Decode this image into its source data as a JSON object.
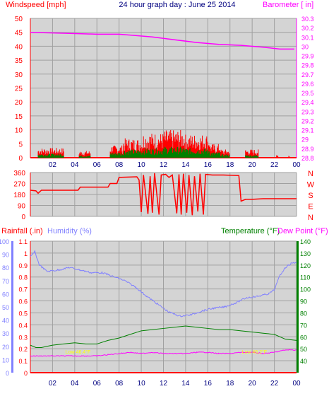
{
  "page": {
    "title": "24 hour graph day : June 25 2014",
    "background": "#ffffff",
    "plot_background": "#d4d4d4",
    "grid_color": "#a0a0a0"
  },
  "chart_data": [
    {
      "id": "wind-baro",
      "type": "line",
      "title": "24 hour graph day : June 25 2014",
      "ylabel_left": "Windspeed [mph]",
      "ylabel_right": "Barometer [ in]",
      "left_axis": {
        "range": [
          0,
          50
        ],
        "ticks": [
          "0",
          "5",
          "10",
          "15",
          "20",
          "25",
          "30",
          "35",
          "40",
          "45",
          "50"
        ],
        "color": "#ff0000"
      },
      "right_axis": {
        "range": [
          28.8,
          30.3
        ],
        "ticks": [
          "28.8",
          "28.9",
          "29",
          "29.1",
          "29.2",
          "29.3",
          "29.4",
          "29.5",
          "29.6",
          "29.7",
          "29.8",
          "29.9",
          "30",
          "30.1",
          "30.2",
          "30.3"
        ],
        "color": "#ff00ff"
      },
      "x_ticks": [
        "02",
        "04",
        "06",
        "08",
        "10",
        "12",
        "14",
        "16",
        "18",
        "20",
        "22",
        "00"
      ],
      "x_range_hours": [
        0,
        24
      ],
      "grid": true,
      "series": [
        {
          "axis": "right",
          "color": "#ff00ff",
          "points": [
            [
              0,
              30.15
            ],
            [
              3,
              30.14
            ],
            [
              6,
              30.13
            ],
            [
              8,
              30.13
            ],
            [
              9,
              30.12
            ],
            [
              11,
              30.1
            ],
            [
              13,
              30.07
            ],
            [
              15,
              30.04
            ],
            [
              17,
              30.02
            ],
            [
              19,
              30.01
            ],
            [
              21,
              29.99
            ],
            [
              22.5,
              29.97
            ],
            [
              23.8,
              29.97
            ]
          ]
        },
        {
          "axis": "left",
          "color": "#ff0000",
          "style": "gust",
          "segments": [
            [
              0.7,
              3.0,
              3.5
            ],
            [
              4.4,
              5.4,
              2.5
            ],
            [
              7.2,
              8.4,
              4.5
            ],
            [
              8.4,
              10.2,
              7.0
            ],
            [
              10.2,
              12.0,
              9.0
            ],
            [
              12.0,
              14.0,
              10.0
            ],
            [
              14.0,
              16.2,
              8.5
            ],
            [
              16.2,
              17.2,
              5.0
            ],
            [
              17.2,
              18.0,
              3.0
            ],
            [
              19.4,
              20.6,
              3.0
            ],
            [
              22.2,
              22.4,
              1.0
            ],
            [
              23.3,
              23.4,
              1.0
            ]
          ]
        },
        {
          "axis": "left",
          "color": "#008000",
          "style": "average",
          "segments": [
            [
              0.7,
              3.0,
              1.5
            ],
            [
              4.4,
              5.4,
              0.8
            ],
            [
              7.2,
              8.4,
              2.0
            ],
            [
              8.4,
              10.2,
              3.0
            ],
            [
              10.2,
              12.0,
              3.5
            ],
            [
              12.0,
              14.0,
              4.0
            ],
            [
              14.0,
              16.2,
              3.5
            ],
            [
              16.2,
              17.2,
              2.0
            ],
            [
              17.2,
              18.0,
              1.2
            ],
            [
              19.4,
              20.6,
              1.0
            ]
          ]
        }
      ]
    },
    {
      "id": "wind-direction",
      "type": "line",
      "left_axis": {
        "range": [
          0,
          360
        ],
        "ticks": [
          "0",
          "90",
          "180",
          "270",
          "360"
        ],
        "color": "#ff0000"
      },
      "right_labels": [
        "N",
        "W",
        "S",
        "E",
        "N"
      ],
      "right_color": "#ff0000",
      "x_ticks": [
        "02",
        "04",
        "06",
        "08",
        "10",
        "12",
        "14",
        "16",
        "18",
        "20",
        "22",
        "00"
      ],
      "x_range_hours": [
        0,
        24
      ],
      "grid": true,
      "series": [
        {
          "color": "#ff0000",
          "points": [
            [
              0,
              215
            ],
            [
              0.5,
              210
            ],
            [
              0.7,
              190
            ],
            [
              1,
              215
            ],
            [
              4.3,
              215
            ],
            [
              4.5,
              240
            ],
            [
              7,
              240
            ],
            [
              7.2,
              270
            ],
            [
              7.8,
              270
            ],
            [
              8,
              320
            ],
            [
              9.6,
              325
            ],
            [
              9.8,
              300
            ],
            [
              10,
              35
            ],
            [
              10.2,
              340
            ],
            [
              10.6,
              20
            ],
            [
              10.8,
              330
            ],
            [
              11,
              30
            ],
            [
              11.2,
              355
            ],
            [
              11.6,
              15
            ],
            [
              11.8,
              340
            ],
            [
              12.2,
              345
            ],
            [
              12.5,
              320
            ],
            [
              12.8,
              340
            ],
            [
              13.2,
              25
            ],
            [
              13.4,
              345
            ],
            [
              13.6,
              15
            ],
            [
              13.8,
              350
            ],
            [
              14.1,
              30
            ],
            [
              14.3,
              340
            ],
            [
              14.6,
              10
            ],
            [
              14.8,
              330
            ],
            [
              15.1,
              40
            ],
            [
              15.3,
              350
            ],
            [
              15.6,
              15
            ],
            [
              15.8,
              345
            ],
            [
              16.4,
              340
            ],
            [
              17.4,
              340
            ],
            [
              18.8,
              335
            ],
            [
              19,
              125
            ],
            [
              19.4,
              140
            ],
            [
              20,
              140
            ],
            [
              21,
              145
            ],
            [
              22,
              145
            ],
            [
              24,
              145
            ]
          ]
        }
      ]
    },
    {
      "id": "rain-humidity-temp",
      "type": "line",
      "ylabel_rain": "Rainfall (.in)",
      "ylabel_humidity": "Humidity (%)",
      "ylabel_temp": "Temperature (°F)",
      "ylabel_dew": "Dew Point (°F)",
      "humidity_axis": {
        "range": [
          0,
          100
        ],
        "ticks": [
          "0",
          "10",
          "20",
          "30",
          "40",
          "50",
          "60",
          "70",
          "80",
          "90",
          "100"
        ],
        "color": "#8080ff"
      },
      "rain_axis": {
        "range": [
          0,
          1.1
        ],
        "ticks": [
          "0",
          "0.1",
          "0.2",
          "0.3",
          "0.4",
          "0.5",
          "0.6",
          "0.7",
          "0.8",
          "0.9",
          "1",
          "1.1"
        ],
        "color": "#ff0000"
      },
      "temp_axis": {
        "range": [
          30,
          140
        ],
        "ticks": [
          "40",
          "50",
          "60",
          "70",
          "80",
          "90",
          "100",
          "110",
          "120",
          "130",
          "140"
        ],
        "color": "#008000"
      },
      "x_ticks": [
        "02",
        "04",
        "06",
        "08",
        "10",
        "12",
        "14",
        "16",
        "18",
        "20",
        "22",
        "00"
      ],
      "x_range_hours": [
        0,
        24
      ],
      "grid": true,
      "annotations": [
        {
          "text": "Low 46.4°F",
          "hour": 4.3,
          "color": "#ffff00"
        },
        {
          "text": "Low 46.2°F",
          "hour": 20.2,
          "color": "#ffff00"
        }
      ],
      "series": [
        {
          "name": "Humidity (%)",
          "axis": "humidity",
          "color": "#8080ff",
          "points": [
            [
              0,
              88
            ],
            [
              0.4,
              92
            ],
            [
              0.8,
              82
            ],
            [
              1.5,
              77
            ],
            [
              2.5,
              78
            ],
            [
              3.5,
              80
            ],
            [
              4.5,
              78
            ],
            [
              5.5,
              76
            ],
            [
              6.5,
              76
            ],
            [
              7.5,
              73
            ],
            [
              8.5,
              70
            ],
            [
              9.5,
              65
            ],
            [
              10.5,
              58
            ],
            [
              11.5,
              52
            ],
            [
              12.5,
              46
            ],
            [
              13.5,
              43
            ],
            [
              14.5,
              44
            ],
            [
              15.5,
              47
            ],
            [
              16.5,
              49
            ],
            [
              17.5,
              50
            ],
            [
              18.5,
              53
            ],
            [
              19.5,
              57
            ],
            [
              20.5,
              58
            ],
            [
              21.5,
              60
            ],
            [
              22,
              63
            ],
            [
              22.5,
              74
            ],
            [
              23,
              80
            ],
            [
              23.5,
              83
            ],
            [
              24,
              84
            ]
          ]
        },
        {
          "name": "Temperature (°F)",
          "axis": "temp",
          "color": "#008000",
          "points": [
            [
              0,
              53
            ],
            [
              0.5,
              51
            ],
            [
              1,
              51
            ],
            [
              1.5,
              52
            ],
            [
              2,
              53
            ],
            [
              3,
              54
            ],
            [
              4,
              55
            ],
            [
              5,
              54
            ],
            [
              6,
              54
            ],
            [
              7,
              57
            ],
            [
              8,
              59
            ],
            [
              9,
              62
            ],
            [
              10,
              65
            ],
            [
              11,
              66
            ],
            [
              12,
              67
            ],
            [
              13,
              68
            ],
            [
              14,
              69
            ],
            [
              15,
              68
            ],
            [
              16,
              67
            ],
            [
              17,
              66
            ],
            [
              18,
              66
            ],
            [
              19,
              65
            ],
            [
              20,
              64
            ],
            [
              21,
              63
            ],
            [
              22,
              62
            ],
            [
              23,
              58
            ],
            [
              24,
              57
            ]
          ]
        },
        {
          "name": "Dew Point (°F)",
          "axis": "temp",
          "color": "#ff00ff",
          "points": [
            [
              0,
              44
            ],
            [
              2,
              44
            ],
            [
              4,
              44
            ],
            [
              6,
              44
            ],
            [
              7,
              45
            ],
            [
              8,
              46
            ],
            [
              9,
              47
            ],
            [
              10,
              46
            ],
            [
              11,
              47
            ],
            [
              12,
              46
            ],
            [
              13,
              46
            ],
            [
              14,
              46
            ],
            [
              15,
              47
            ],
            [
              16,
              47
            ],
            [
              17,
              46
            ],
            [
              18,
              46
            ],
            [
              19,
              47
            ],
            [
              20,
              47
            ],
            [
              21,
              46
            ],
            [
              22,
              47
            ],
            [
              23,
              49
            ],
            [
              24,
              49
            ]
          ]
        },
        {
          "name": "Rainfall (.in)",
          "axis": "rain",
          "color": "#ff0000",
          "points": [
            [
              0,
              0
            ],
            [
              24,
              0
            ]
          ]
        }
      ]
    }
  ]
}
